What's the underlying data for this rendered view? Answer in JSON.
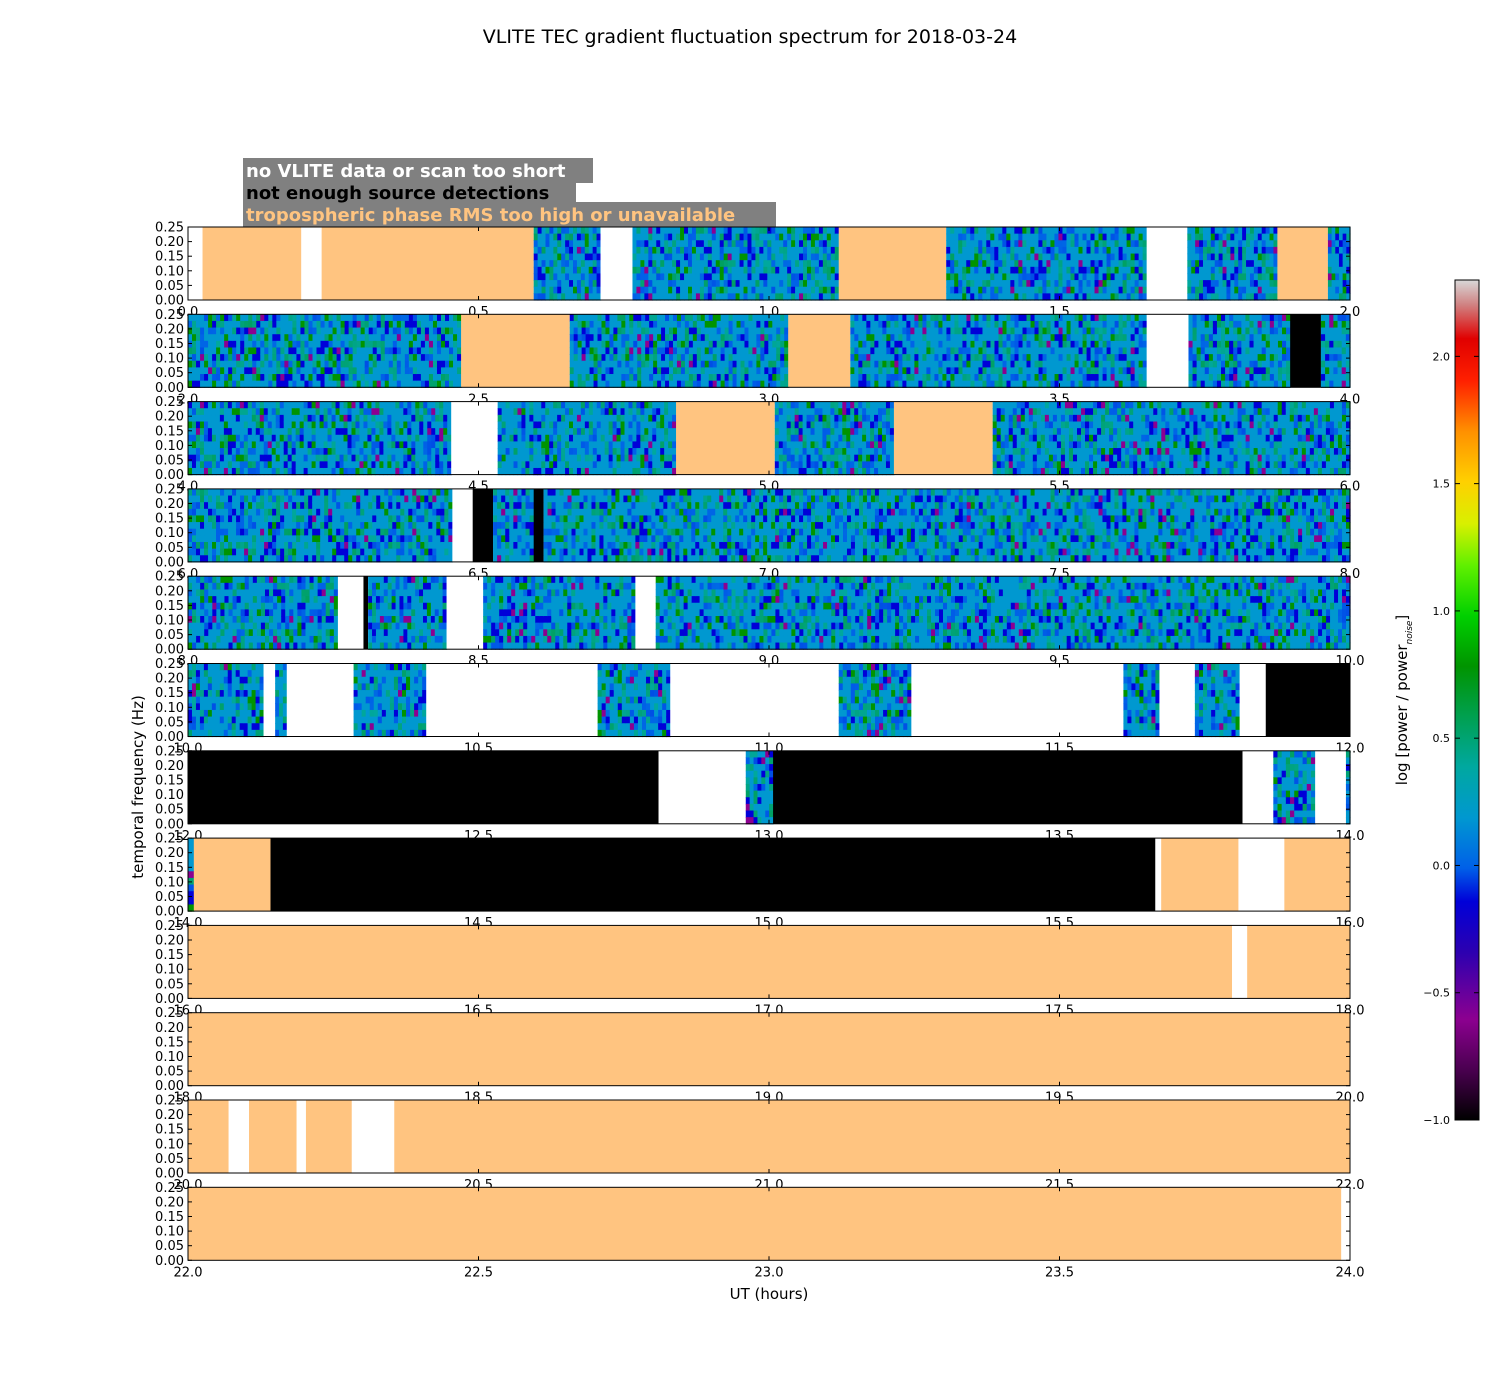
{
  "chart_data": {
    "type": "heatmap",
    "title": "VLITE TEC gradient fluctuation spectrum for 2018-03-24",
    "xlabel": "UT (hours)",
    "ylabel": "temporal frequency (Hz)",
    "yticks": [
      "0.00",
      "0.05",
      "0.10",
      "0.15",
      "0.20",
      "0.25"
    ],
    "ylim": [
      0,
      0.25
    ],
    "colorbar": {
      "label": "log [power / power",
      "label_sub": "noise",
      "label_close": "]",
      "ticks": [
        "−1.0",
        "−0.5",
        "0.0",
        "0.5",
        "1.0",
        "1.5",
        "2.0"
      ],
      "range": [
        -1.0,
        2.3
      ]
    },
    "legend": [
      {
        "label": "no VLITE data or scan too short",
        "color": "#ffffff"
      },
      {
        "label": "not enough source detections",
        "color": "#000000"
      },
      {
        "label": "tropospheric phase RMS too high or unavailable",
        "color": "#ffc480"
      }
    ],
    "legend_bg": "#808080",
    "flag_colors": {
      "white": "#ffffff",
      "black": "#000000",
      "orange": "#ffc480"
    },
    "panels": [
      {
        "xticks": [
          "0.0",
          "0.5",
          "1.0",
          "1.5",
          "2.0"
        ],
        "xlim": [
          0,
          2
        ],
        "segments": [
          [
            0,
            0.025,
            "white"
          ],
          [
            0.025,
            0.195,
            "orange"
          ],
          [
            0.195,
            0.23,
            "white"
          ],
          [
            0.23,
            0.595,
            "orange"
          ],
          [
            0.595,
            0.71,
            "data"
          ],
          [
            0.71,
            0.765,
            "white"
          ],
          [
            0.765,
            1.12,
            "data"
          ],
          [
            1.12,
            1.305,
            "orange"
          ],
          [
            1.305,
            1.65,
            "data"
          ],
          [
            1.65,
            1.72,
            "white"
          ],
          [
            1.72,
            1.875,
            "data"
          ],
          [
            1.875,
            1.962,
            "orange"
          ],
          [
            1.962,
            2.0,
            "data"
          ]
        ]
      },
      {
        "xticks": [
          "2.0",
          "2.5",
          "3.0",
          "3.5",
          "4.0"
        ],
        "xlim": [
          2,
          4
        ],
        "segments": [
          [
            2.0,
            2.47,
            "data"
          ],
          [
            2.47,
            2.657,
            "orange"
          ],
          [
            2.657,
            3.033,
            "data"
          ],
          [
            3.033,
            3.14,
            "orange"
          ],
          [
            3.14,
            3.65,
            "data"
          ],
          [
            3.65,
            3.722,
            "white"
          ],
          [
            3.722,
            3.897,
            "data"
          ],
          [
            3.897,
            3.95,
            "black"
          ],
          [
            3.95,
            4.0,
            "data"
          ]
        ]
      },
      {
        "xticks": [
          "4.0",
          "4.5",
          "5.0",
          "5.5",
          "6.0"
        ],
        "xlim": [
          4,
          6
        ],
        "segments": [
          [
            4.0,
            4.453,
            "data"
          ],
          [
            4.453,
            4.533,
            "white"
          ],
          [
            4.533,
            4.84,
            "data"
          ],
          [
            4.84,
            5.01,
            "orange"
          ],
          [
            5.01,
            5.215,
            "data"
          ],
          [
            5.215,
            5.385,
            "orange"
          ],
          [
            5.385,
            6.0,
            "data"
          ]
        ]
      },
      {
        "xticks": [
          "6.0",
          "6.5",
          "7.0",
          "7.5",
          "8.0"
        ],
        "xlim": [
          6,
          8
        ],
        "segments": [
          [
            6.0,
            6.455,
            "data"
          ],
          [
            6.455,
            6.49,
            "white"
          ],
          [
            6.49,
            6.525,
            "black"
          ],
          [
            6.525,
            6.595,
            "data"
          ],
          [
            6.595,
            6.612,
            "black"
          ],
          [
            6.612,
            8.0,
            "data"
          ]
        ]
      },
      {
        "xticks": [
          "8.0",
          "8.5",
          "9.0",
          "9.5",
          "10.0"
        ],
        "xlim": [
          8,
          10
        ],
        "segments": [
          [
            8.0,
            8.258,
            "data"
          ],
          [
            8.258,
            8.302,
            "white"
          ],
          [
            8.302,
            8.31,
            "black"
          ],
          [
            8.31,
            8.445,
            "data"
          ],
          [
            8.445,
            8.508,
            "white"
          ],
          [
            8.508,
            8.77,
            "data"
          ],
          [
            8.77,
            8.805,
            "white"
          ],
          [
            8.805,
            10.0,
            "data"
          ]
        ]
      },
      {
        "xticks": [
          "10.0",
          "10.5",
          "11.0",
          "11.5",
          "12.0"
        ],
        "xlim": [
          10,
          12
        ],
        "segments": [
          [
            10.0,
            10.13,
            "data"
          ],
          [
            10.13,
            10.15,
            "white"
          ],
          [
            10.15,
            10.17,
            "data"
          ],
          [
            10.17,
            10.285,
            "white"
          ],
          [
            10.285,
            10.41,
            "data"
          ],
          [
            10.41,
            10.705,
            "white"
          ],
          [
            10.705,
            10.83,
            "data"
          ],
          [
            10.83,
            11.12,
            "white"
          ],
          [
            11.12,
            11.245,
            "data"
          ],
          [
            11.245,
            11.61,
            "white"
          ],
          [
            11.61,
            11.672,
            "data"
          ],
          [
            11.672,
            11.733,
            "white"
          ],
          [
            11.733,
            11.81,
            "data"
          ],
          [
            11.81,
            11.855,
            "white"
          ],
          [
            11.855,
            12.0,
            "black"
          ]
        ]
      },
      {
        "xticks": [
          "12.0",
          "12.5",
          "13.0",
          "13.5",
          "14.0"
        ],
        "xlim": [
          12,
          14
        ],
        "segments": [
          [
            12.0,
            12.81,
            "black"
          ],
          [
            12.81,
            12.96,
            "white"
          ],
          [
            12.96,
            13.007,
            "data"
          ],
          [
            13.007,
            13.815,
            "black"
          ],
          [
            13.815,
            13.868,
            "white"
          ],
          [
            13.868,
            13.94,
            "data"
          ],
          [
            13.94,
            13.993,
            "white"
          ],
          [
            13.993,
            14.0,
            "data"
          ]
        ]
      },
      {
        "xticks": [
          "14.0",
          "14.5",
          "15.0",
          "15.5",
          "16.0"
        ],
        "xlim": [
          14,
          16
        ],
        "segments": [
          [
            14.0,
            14.01,
            "data"
          ],
          [
            14.01,
            14.142,
            "orange"
          ],
          [
            14.142,
            15.665,
            "black"
          ],
          [
            15.665,
            15.675,
            "white"
          ],
          [
            15.675,
            15.808,
            "orange"
          ],
          [
            15.808,
            15.887,
            "white"
          ],
          [
            15.887,
            16.0,
            "orange"
          ]
        ]
      },
      {
        "xticks": [
          "16.0",
          "16.5",
          "17.0",
          "17.5",
          "18.0"
        ],
        "xlim": [
          16,
          18
        ],
        "segments": [
          [
            16.0,
            17.797,
            "orange"
          ],
          [
            17.797,
            17.823,
            "white"
          ],
          [
            17.823,
            18.0,
            "orange"
          ]
        ]
      },
      {
        "xticks": [
          "18.0",
          "18.5",
          "19.0",
          "19.5",
          "20.0"
        ],
        "xlim": [
          18,
          20
        ],
        "segments": [
          [
            18.0,
            20.0,
            "orange"
          ]
        ]
      },
      {
        "xticks": [
          "20.0",
          "20.5",
          "21.0",
          "21.5",
          "22.0"
        ],
        "xlim": [
          20,
          22
        ],
        "segments": [
          [
            20.0,
            20.07,
            "orange"
          ],
          [
            20.07,
            20.105,
            "white"
          ],
          [
            20.105,
            20.187,
            "orange"
          ],
          [
            20.187,
            20.203,
            "white"
          ],
          [
            20.203,
            20.282,
            "orange"
          ],
          [
            20.282,
            20.355,
            "white"
          ],
          [
            20.355,
            22.0,
            "orange"
          ]
        ]
      },
      {
        "xticks": [
          "22.0",
          "22.5",
          "23.0",
          "23.5",
          "24.0"
        ],
        "xlim": [
          22,
          24
        ],
        "segments": [
          [
            22.0,
            23.985,
            "orange"
          ],
          [
            23.985,
            24.0,
            "white"
          ]
        ]
      }
    ]
  }
}
